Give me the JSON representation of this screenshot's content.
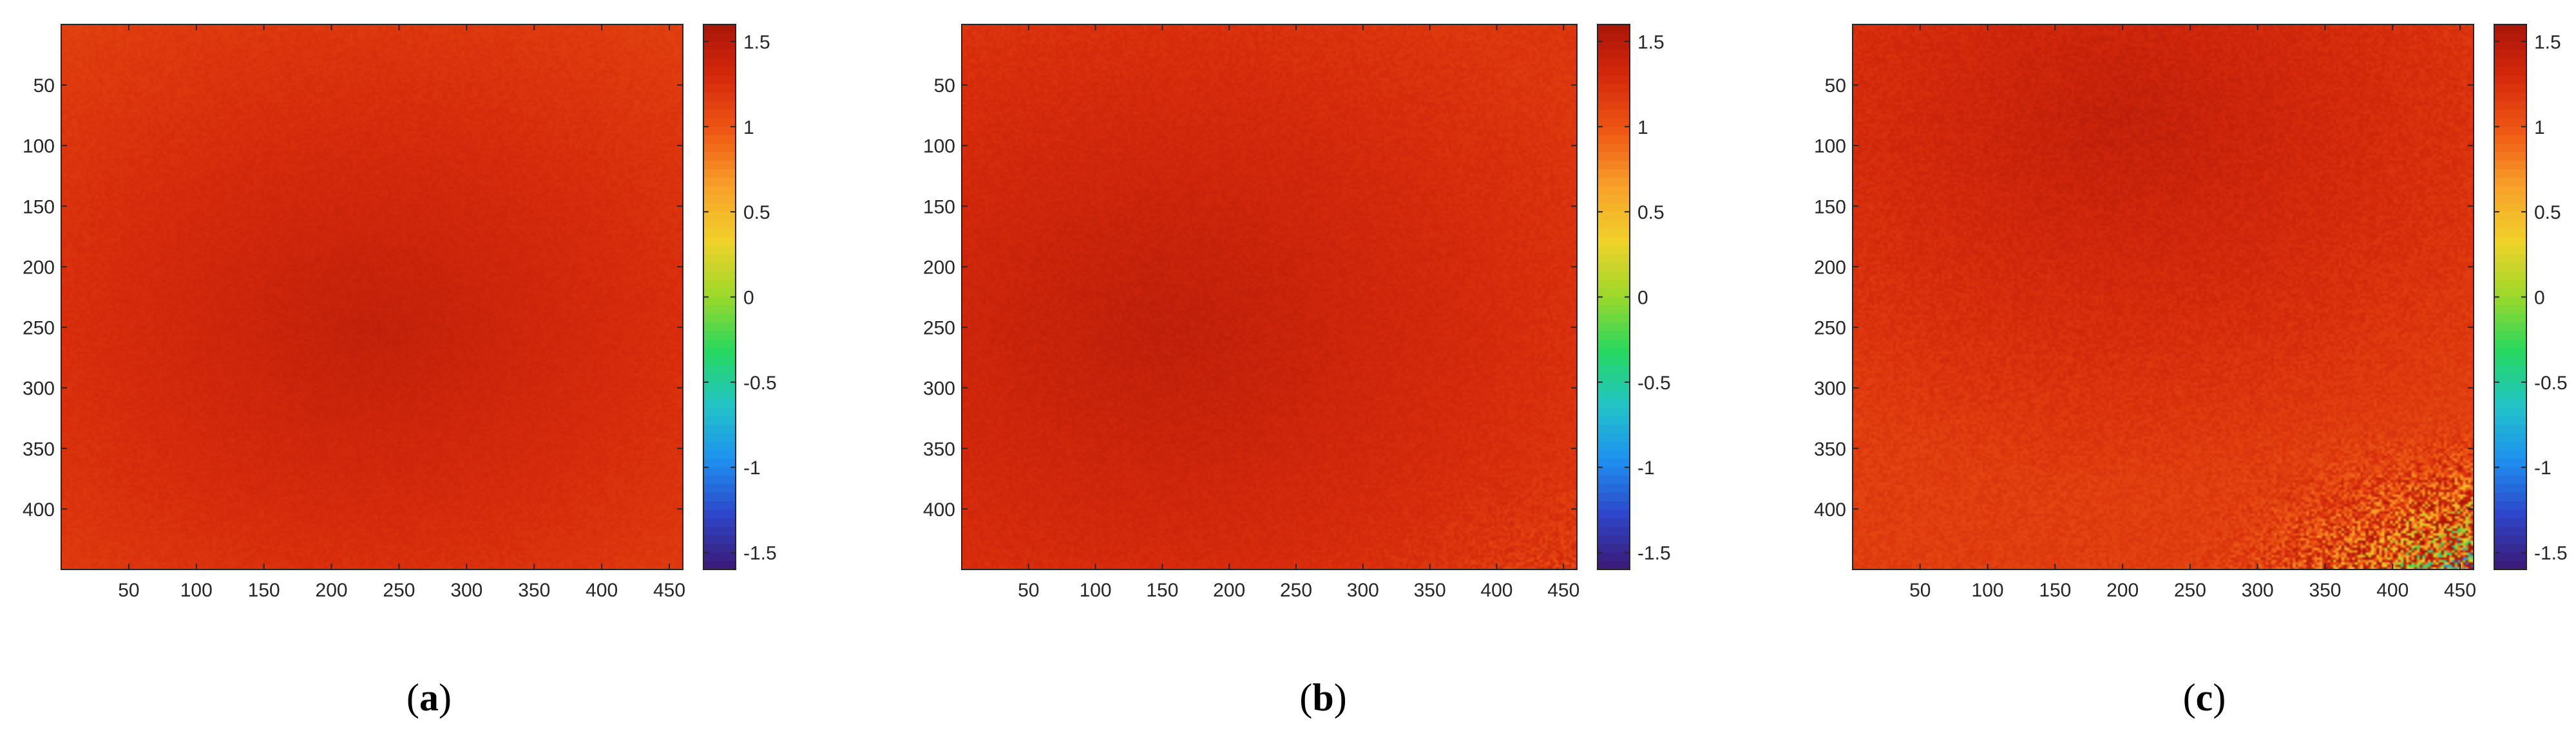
{
  "figure": {
    "panels": [
      {
        "paren_open": "(",
        "letter": "a",
        "paren_close": ")"
      },
      {
        "paren_open": "(",
        "letter": "b",
        "paren_close": ")"
      },
      {
        "paren_open": "(",
        "letter": "c",
        "paren_close": ")"
      }
    ]
  },
  "colors": {
    "colormap": [
      "#3b1a75",
      "#2e45c8",
      "#1e90f0",
      "#22c4c8",
      "#26d860",
      "#9ad82a",
      "#f0d22a",
      "#f8a22a",
      "#ef5a14",
      "#d62a0c",
      "#aa1508"
    ],
    "axis": "#262626",
    "background": "#ffffff"
  },
  "chart_data": [
    {
      "type": "heatmap",
      "panel": "a",
      "title": "",
      "xlabel": "",
      "ylabel": "",
      "xlim": [
        0,
        460
      ],
      "ylim": [
        0,
        450
      ],
      "y_reversed": true,
      "clim": [
        -1.6,
        1.6
      ],
      "x_ticks": [
        50,
        100,
        150,
        200,
        250,
        300,
        350,
        400,
        450
      ],
      "y_ticks": [
        50,
        100,
        150,
        200,
        250,
        300,
        350,
        400
      ],
      "colorbar": {
        "ticks": [
          -1.5,
          -1,
          -0.5,
          0,
          0.5,
          1,
          1.5
        ],
        "tick_labels": [
          "-1.5",
          "-1",
          "-0.5",
          "0",
          "0.5",
          "1",
          "1.5"
        ]
      },
      "field": {
        "edge_value": 1.15,
        "center_value": 1.42,
        "center_x": 230,
        "center_y": 250,
        "noise": 0.04,
        "bottom_right_noise": 0
      }
    },
    {
      "type": "heatmap",
      "panel": "b",
      "title": "",
      "xlabel": "",
      "ylabel": "",
      "xlim": [
        0,
        460
      ],
      "ylim": [
        0,
        450
      ],
      "y_reversed": true,
      "clim": [
        -1.6,
        1.6
      ],
      "x_ticks": [
        50,
        100,
        150,
        200,
        250,
        300,
        350,
        400,
        450
      ],
      "y_ticks": [
        50,
        100,
        150,
        200,
        250,
        300,
        350,
        400
      ],
      "colorbar": {
        "ticks": [
          -1.5,
          -1,
          -0.5,
          0,
          0.5,
          1,
          1.5
        ],
        "tick_labels": [
          "-1.5",
          "-1",
          "-0.5",
          "0",
          "0.5",
          "1",
          "1.5"
        ]
      },
      "field": {
        "edge_value": 1.2,
        "center_value": 1.44,
        "center_x": 150,
        "center_y": 250,
        "noise": 0.05,
        "bottom_right_noise": 0.15
      }
    },
    {
      "type": "heatmap",
      "panel": "c",
      "title": "",
      "xlabel": "",
      "ylabel": "",
      "xlim": [
        0,
        460
      ],
      "ylim": [
        0,
        450
      ],
      "y_reversed": true,
      "clim": [
        -1.6,
        1.6
      ],
      "x_ticks": [
        50,
        100,
        150,
        200,
        250,
        300,
        350,
        400,
        450
      ],
      "y_ticks": [
        50,
        100,
        150,
        200,
        250,
        300,
        350,
        400
      ],
      "colorbar": {
        "ticks": [
          -1.5,
          -1,
          -0.5,
          0,
          0.5,
          1,
          1.5
        ],
        "tick_labels": [
          "-1.5",
          "-1",
          "-0.5",
          "0",
          "0.5",
          "1",
          "1.5"
        ]
      },
      "field": {
        "edge_value": 1.15,
        "center_value": 1.42,
        "center_x": 200,
        "center_y": 80,
        "noise": 0.07,
        "bottom_right_noise": 1.6
      }
    }
  ]
}
